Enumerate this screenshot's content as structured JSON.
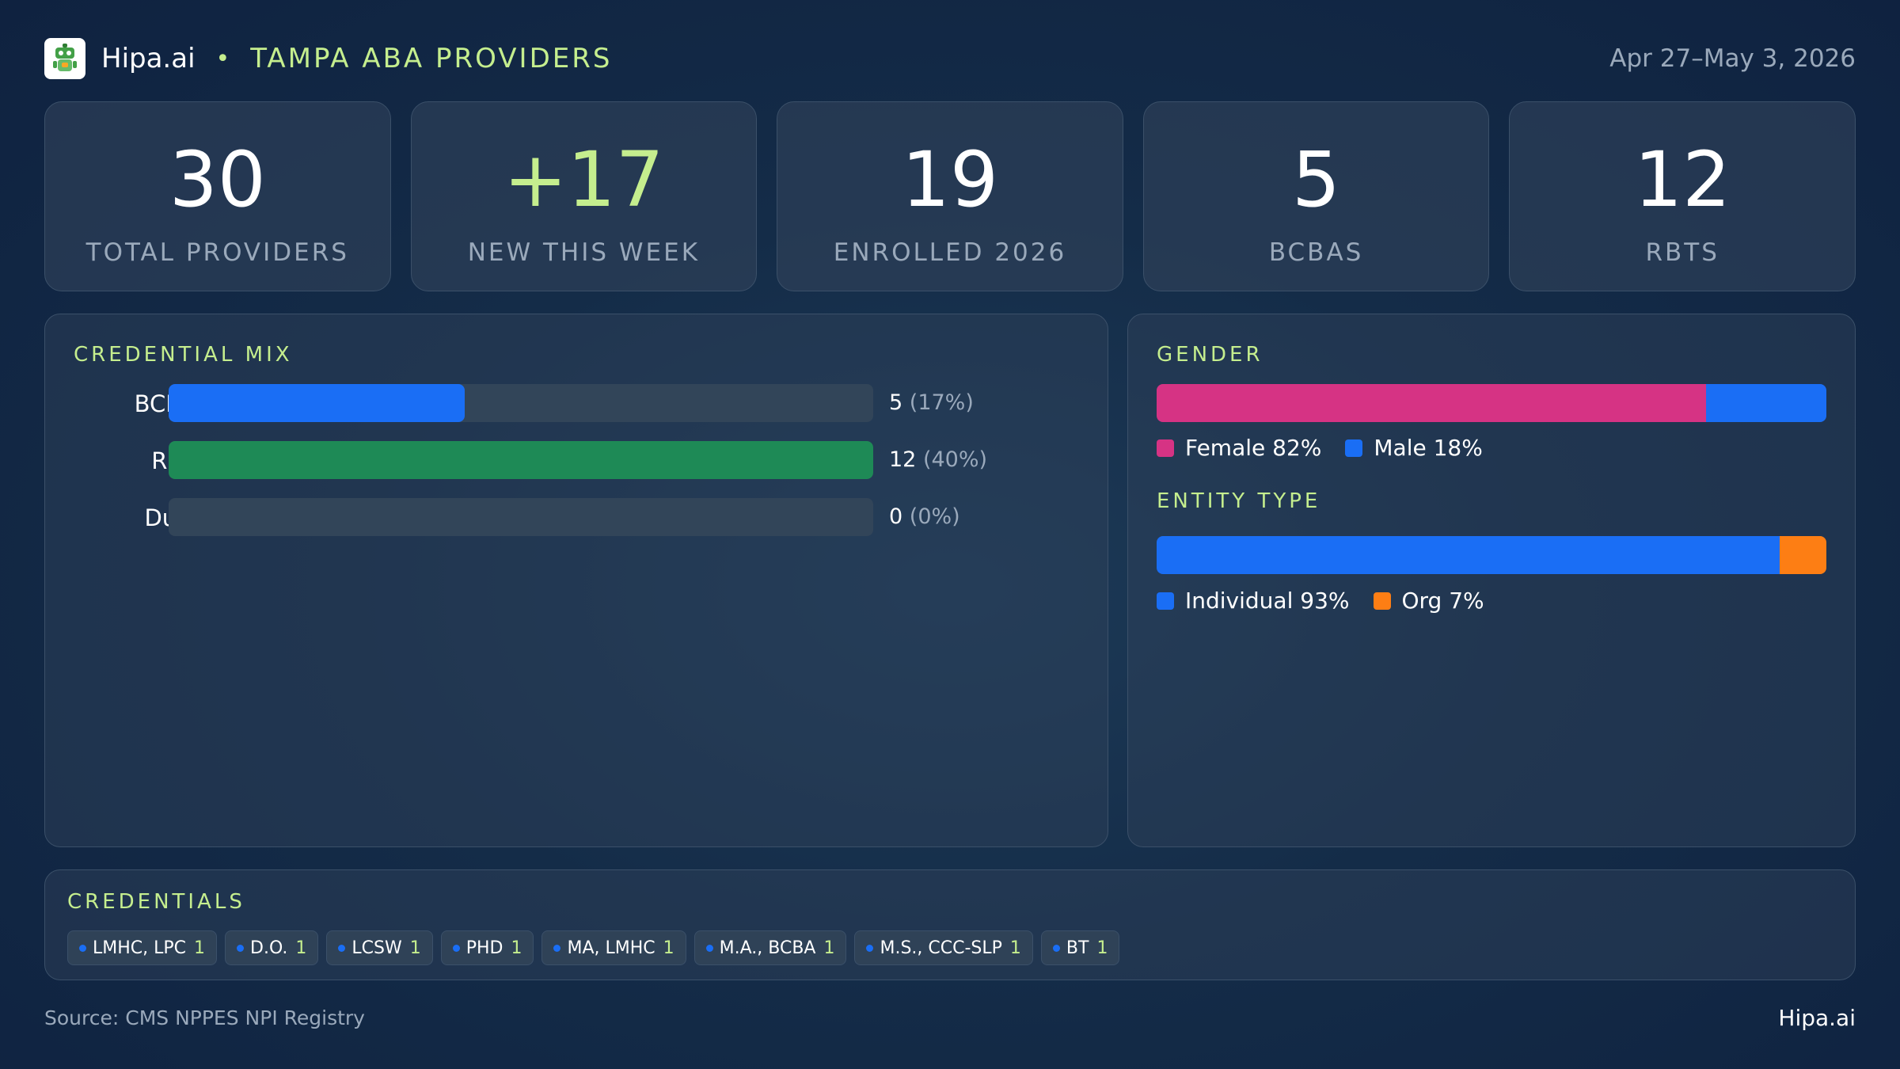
{
  "header": {
    "brand": "Hipa.ai",
    "separator": "•",
    "subtitle": "TAMPA ABA PROVIDERS",
    "date_range": "Apr 27–May 3, 2026",
    "logo_icon": "robot-icon"
  },
  "stats": [
    {
      "value": "30",
      "label": "TOTAL PROVIDERS"
    },
    {
      "value": "+17",
      "label": "NEW THIS WEEK"
    },
    {
      "value": "19",
      "label": "ENROLLED 2026"
    },
    {
      "value": "5",
      "label": "BCBAS"
    },
    {
      "value": "12",
      "label": "RBTS"
    }
  ],
  "credential_mix": {
    "title": "CREDENTIAL MIX",
    "rows": [
      {
        "label": "BCBA",
        "count": "5",
        "pct": "(17%)",
        "fill": 0.42,
        "color": "#1a6ef5"
      },
      {
        "label": "RBT",
        "count": "12",
        "pct": "(40%)",
        "fill": 1.0,
        "color": "#1e8a56"
      },
      {
        "label": "Dual",
        "count": "0",
        "pct": "(0%)",
        "fill": 0.0,
        "color": "#1a6ef5"
      }
    ]
  },
  "gender": {
    "title": "GENDER",
    "segments": [
      {
        "label": "Female 82%",
        "share": 0.82,
        "color": "#d63384"
      },
      {
        "label": "Male 18%",
        "share": 0.18,
        "color": "#1a6ef5"
      }
    ]
  },
  "entity_type": {
    "title": "ENTITY TYPE",
    "segments": [
      {
        "label": "Individual 93%",
        "share": 0.93,
        "color": "#1a6ef5"
      },
      {
        "label": "Org 7%",
        "share": 0.07,
        "color": "#fd7e14"
      }
    ]
  },
  "credentials": {
    "title": "CREDENTIALS",
    "chips": [
      {
        "label": "LMHC, LPC",
        "count": "1"
      },
      {
        "label": "D.O.",
        "count": "1"
      },
      {
        "label": "LCSW",
        "count": "1"
      },
      {
        "label": "PHD",
        "count": "1"
      },
      {
        "label": "MA, LMHC",
        "count": "1"
      },
      {
        "label": "M.A., BCBA",
        "count": "1"
      },
      {
        "label": "M.S., CCC-SLP",
        "count": "1"
      },
      {
        "label": "BT",
        "count": "1"
      }
    ]
  },
  "footer": {
    "source": "Source: CMS NPPES NPI Registry",
    "brand": "Hipa.ai"
  }
}
